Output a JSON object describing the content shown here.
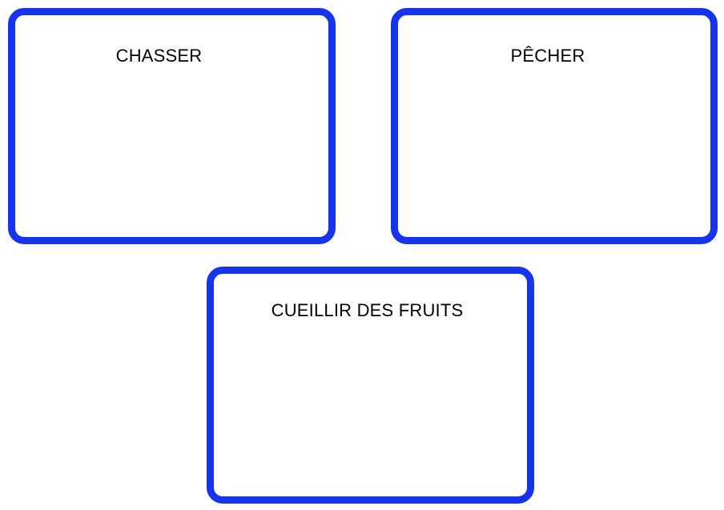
{
  "cards": [
    {
      "title": "CHASSER"
    },
    {
      "title": "PÊCHER"
    },
    {
      "title": "CUEILLIR DES FRUITS"
    }
  ],
  "colors": {
    "border": "#1634ec",
    "text": "#000000",
    "background": "#ffffff"
  }
}
